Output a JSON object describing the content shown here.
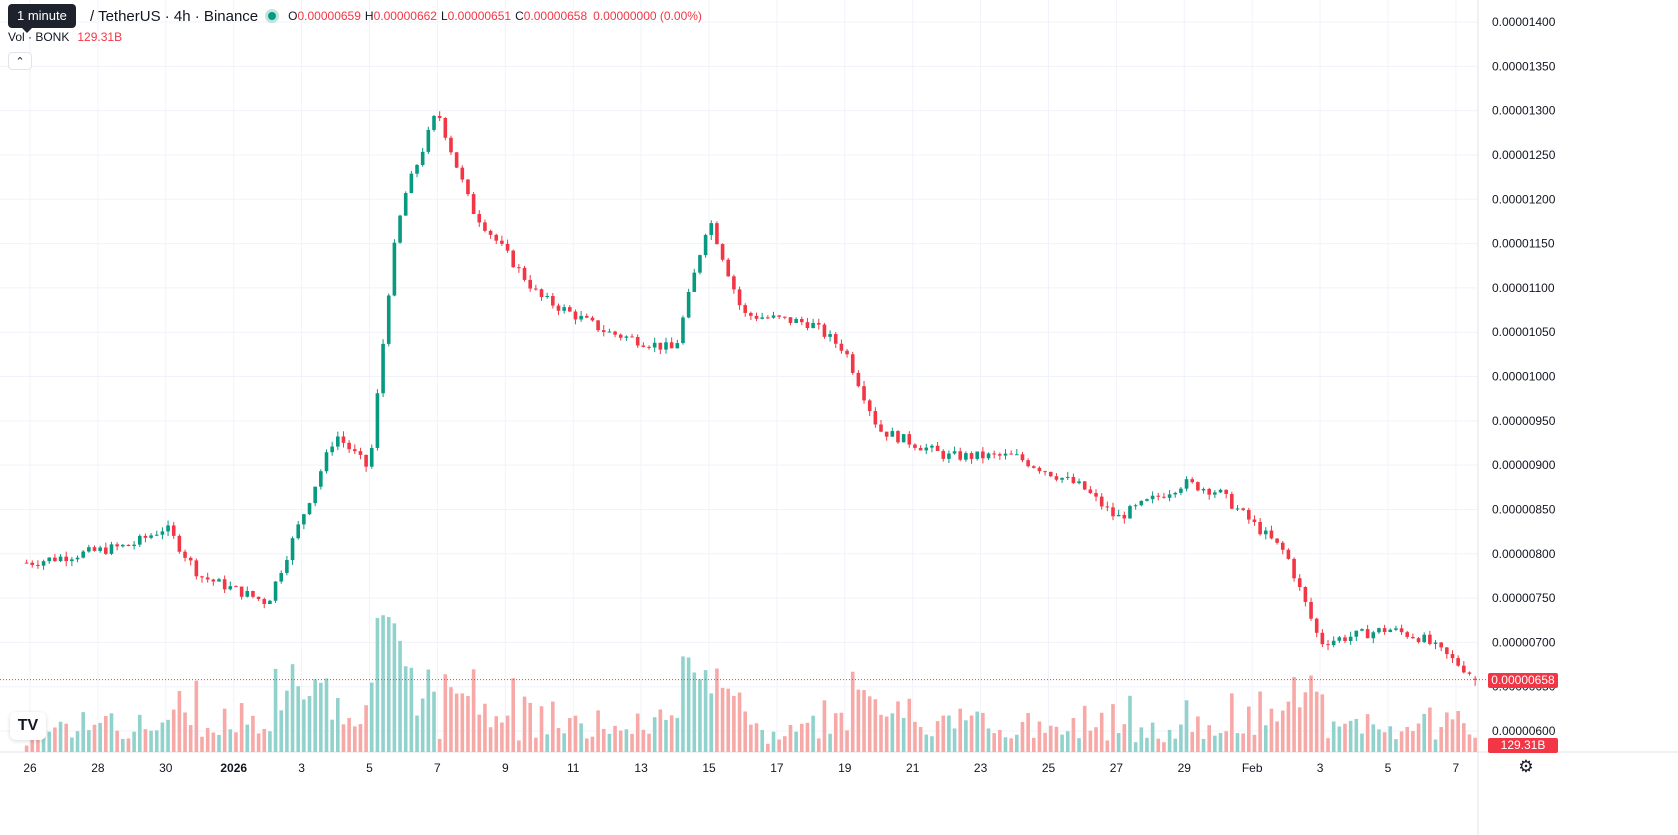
{
  "legend": {
    "title": "/ TetherUS · 4h · Binance",
    "open_label": "O",
    "open": "0.00000659",
    "high_label": "H",
    "high": "0.00000662",
    "low_label": "L",
    "low": "0.00000651",
    "close_label": "C",
    "close": "0.00000658",
    "change": "0.00000000 (0.00%)"
  },
  "tooltip": "1 minute",
  "volume_legend": {
    "label": "Vol · BONK",
    "value": "129.31B"
  },
  "collapse_icon": "chevron-up-icon",
  "logo_text": "TV",
  "settings_icon": "gear-icon",
  "price_tag": "0.00000658",
  "volume_tag": "129.31B",
  "colors": {
    "up": "#089981",
    "down": "#F23645",
    "up_vol": "#92D2CC",
    "down_vol": "#F7A9A7"
  },
  "chart_data": {
    "type": "candlestick",
    "title": "",
    "xlabel": "",
    "ylabel": "",
    "ylim": [
      5.75e-06,
      1.425e-05
    ],
    "y_ticks": [
      "0.00001400",
      "0.00001350",
      "0.00001300",
      "0.00001250",
      "0.00001200",
      "0.00001150",
      "0.00001100",
      "0.00001050",
      "0.00001000",
      "0.00000950",
      "0.00000900",
      "0.00000850",
      "0.00000800",
      "0.00000750",
      "0.00000700",
      "0.00000650",
      "0.00000600"
    ],
    "x_ticks": [
      "26",
      "28",
      "30",
      "2026",
      "3",
      "5",
      "7",
      "9",
      "11",
      "13",
      "15",
      "17",
      "19",
      "21",
      "23",
      "25",
      "27",
      "29",
      "Feb",
      "3",
      "5",
      "7"
    ],
    "last_price": 6.58e-06,
    "grid": true,
    "ohlc_anchors": [
      {
        "date": "Dec 25",
        "close": 7.9e-06
      },
      {
        "date": "Dec 28",
        "close": 8.1e-06
      },
      {
        "date": "Dec 29",
        "close": 8.3e-06
      },
      {
        "date": "Dec 30",
        "close": 7.75e-06
      },
      {
        "date": "Jan 1",
        "close": 7.45e-06
      },
      {
        "date": "Jan 3",
        "close": 9.35e-06
      },
      {
        "date": "Jan 4",
        "close": 8.95e-06
      },
      {
        "date": "Jan 4 16:00",
        "close": 1.13e-05
      },
      {
        "date": "Jan 5",
        "close": 1.2e-05
      },
      {
        "date": "Jan 6",
        "close": 1.3e-05
      },
      {
        "date": "Jan 7",
        "close": 1.19e-05
      },
      {
        "date": "Jan 9",
        "close": 1.09e-05
      },
      {
        "date": "Jan 11",
        "close": 1.05e-05
      },
      {
        "date": "Jan 13",
        "close": 1.03e-05
      },
      {
        "date": "Jan 14",
        "close": 1.18e-05
      },
      {
        "date": "Jan 15",
        "close": 1.07e-05
      },
      {
        "date": "Jan 17",
        "close": 1.06e-05
      },
      {
        "date": "Jan 18",
        "close": 1.03e-05
      },
      {
        "date": "Jan 19",
        "close": 9.4e-06
      },
      {
        "date": "Jan 21",
        "close": 9.1e-06
      },
      {
        "date": "Jan 23",
        "close": 9.1e-06
      },
      {
        "date": "Jan 25",
        "close": 8.75e-06
      },
      {
        "date": "Jan 26",
        "close": 8.4e-06
      },
      {
        "date": "Jan 28",
        "close": 8.8e-06
      },
      {
        "date": "Jan 29",
        "close": 8.7e-06
      },
      {
        "date": "Jan 31",
        "close": 8e-06
      },
      {
        "date": "Feb 1",
        "close": 7e-06
      },
      {
        "date": "Feb 3",
        "close": 7.15e-06
      },
      {
        "date": "Feb 4",
        "close": 7.05e-06
      },
      {
        "date": "Feb 5",
        "close": 6.58e-06
      }
    ],
    "volume_max": "peak on Jan 4"
  }
}
